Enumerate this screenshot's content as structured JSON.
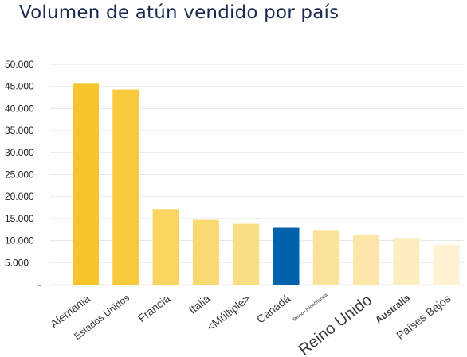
{
  "chart_data": {
    "type": "bar",
    "title": "Volumen de atún vendido por país",
    "xlabel": "",
    "ylabel": "",
    "categories": [
      "Alemania",
      "Estados Unidos",
      "Francia",
      "Italia",
      "<Múltiple>",
      "Canadá",
      "Reino Unido/Irlanda",
      "Reino Unido",
      "Australia",
      "Países Bajos"
    ],
    "values": [
      45600,
      44300,
      17100,
      14700,
      13800,
      12900,
      12400,
      11300,
      10600,
      9100
    ],
    "bar_colors": [
      "#f7c52b",
      "#f8ca3c",
      "#f9d461",
      "#fad973",
      "#fbdd84",
      "#0062ab",
      "#fbe39b",
      "#fce7a9",
      "#fdecbd",
      "#fef2d2"
    ],
    "ylim": [
      0,
      50000
    ],
    "yticks": [
      0,
      5000,
      10000,
      15000,
      20000,
      25000,
      30000,
      35000,
      40000,
      45000,
      50000
    ],
    "ytick_labels": [
      "-",
      "5.000",
      "10.000",
      "15.000",
      "20.000",
      "25.000",
      "30.000",
      "35.000",
      "40.000",
      "45.000",
      "50.000"
    ],
    "grid": true,
    "legend": "none"
  }
}
